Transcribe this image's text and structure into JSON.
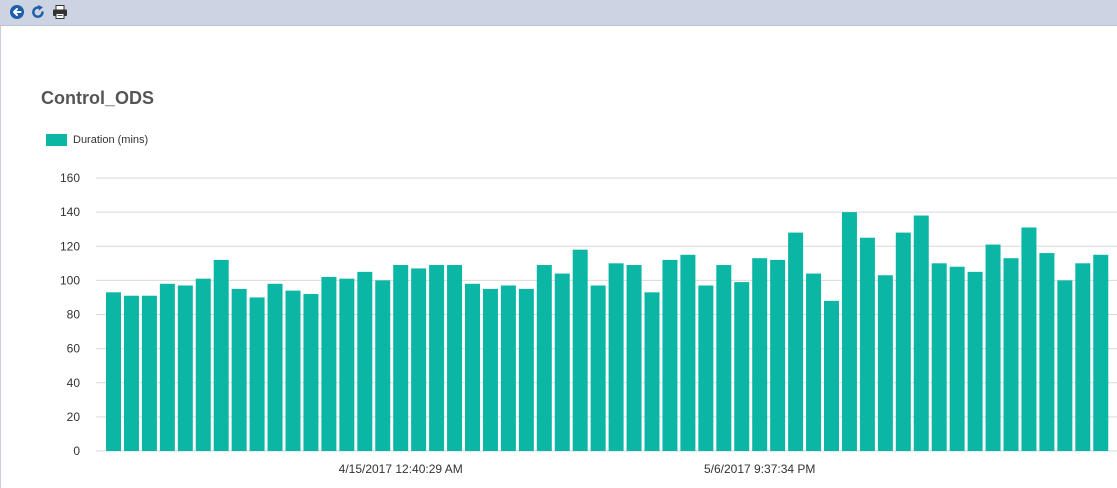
{
  "toolbar": {
    "back_icon": "back-arrow-icon",
    "refresh_icon": "refresh-icon",
    "print_icon": "print-icon"
  },
  "colors": {
    "bar": "#0bb6a5",
    "grid": "#d9d9d9",
    "toolbar_bg": "#ccd3e2",
    "icon": "#1d5ea8"
  },
  "chart_data": {
    "type": "bar",
    "title": "Control_ODS",
    "xlabel": "",
    "ylabel": "",
    "ylim": [
      0,
      160
    ],
    "yticks": [
      0,
      20,
      40,
      60,
      80,
      100,
      120,
      140,
      160
    ],
    "grid": true,
    "legend_position": "top-left",
    "series": [
      {
        "name": "Duration (mins)",
        "values": [
          93,
          91,
          91,
          98,
          97,
          101,
          112,
          95,
          90,
          98,
          94,
          92,
          102,
          101,
          105,
          100,
          109,
          107,
          109,
          109,
          98,
          95,
          97,
          95,
          109,
          104,
          118,
          97,
          110,
          109,
          93,
          112,
          115,
          97,
          109,
          99,
          113,
          112,
          128,
          104,
          88,
          140,
          125,
          103,
          128,
          138,
          110,
          108,
          105,
          121,
          113,
          131,
          116,
          100,
          110,
          115
        ]
      }
    ],
    "x_tick_labels": [
      {
        "index": 16,
        "label": "4/15/2017 12:40:29 AM"
      },
      {
        "index": 36,
        "label": "5/6/2017 9:37:34 PM"
      }
    ]
  }
}
